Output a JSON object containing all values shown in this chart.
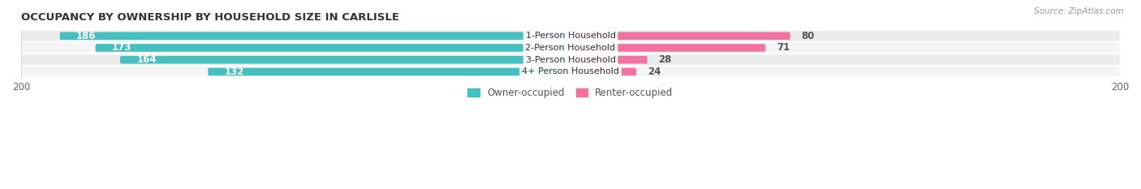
{
  "title": "OCCUPANCY BY OWNERSHIP BY HOUSEHOLD SIZE IN CARLISLE",
  "source": "Source: ZipAtlas.com",
  "categories": [
    "1-Person Household",
    "2-Person Household",
    "3-Person Household",
    "4+ Person Household"
  ],
  "owner_values": [
    186,
    173,
    164,
    132
  ],
  "renter_values": [
    80,
    71,
    28,
    24
  ],
  "max_axis": 200,
  "owner_color": "#45BFBF",
  "renter_color": "#F472A0",
  "row_bg_colors": [
    "#EBEBEB",
    "#F5F5F5"
  ],
  "title_fontsize": 9.5,
  "source_fontsize": 7.5,
  "bar_label_fontsize": 8.5,
  "category_fontsize": 8.0,
  "axis_label_fontsize": 8.5,
  "legend_fontsize": 8.5,
  "fig_width": 14.06,
  "fig_height": 2.33
}
